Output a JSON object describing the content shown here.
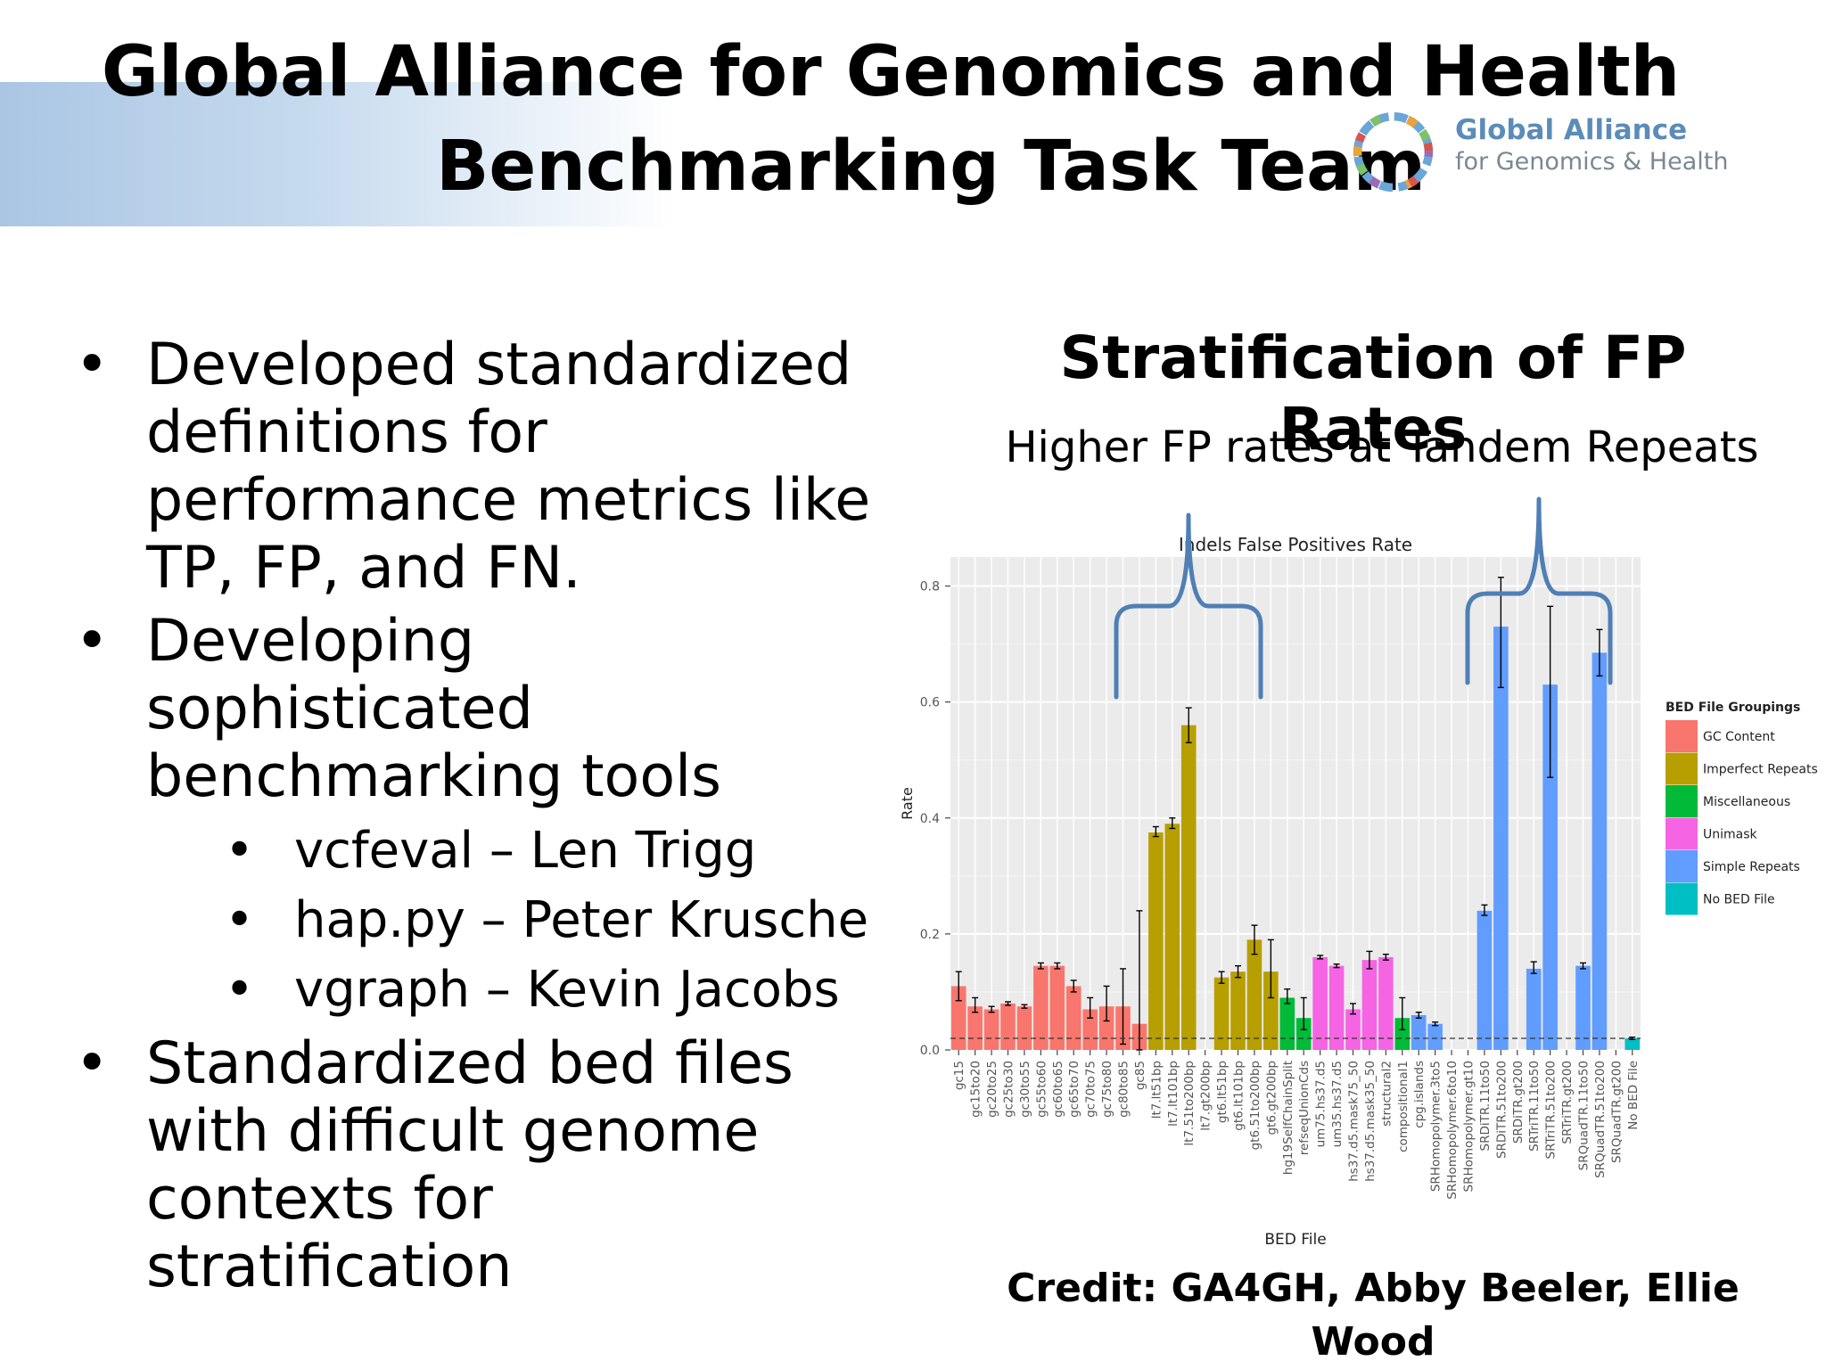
{
  "slide": {
    "title_line1": "Global Alliance for Genomics and Health",
    "title_line2": "Benchmarking Task Team",
    "logo_line1": "Global Alliance",
    "logo_line2": "for Genomics & Health",
    "bullets": [
      "Developed standardized definitions for performance metrics like TP, FP, and FN.",
      "Developing sophisticated benchmarking tools",
      "Standardized bed files with difficult genome contexts for stratification"
    ],
    "sub_bullets": [
      "vcfeval – Len Trigg",
      "hap.py – Peter Krusche",
      "vgraph – Kevin Jacobs"
    ],
    "bullet_glyph": "•",
    "chart_heading": "Stratification of FP Rates",
    "chart_subheading": "Higher FP rates at Tandem Repeats",
    "credit": "Credit: GA4GH, Abby Beeler, Ellie Wood"
  },
  "colors": {
    "GC Content": "#F8766D",
    "Imperfect Repeats": "#B79F00",
    "Miscellaneous": "#00BA38",
    "Unimask": "#F564E3",
    "Simple Repeats": "#619CFF",
    "No BED File": "#00BFC4",
    "panel": "#EBEBEB",
    "brace": "#4F7FB5"
  },
  "chart_data": {
    "type": "bar",
    "title": "Indels False Positives Rate",
    "xlabel": "BED File",
    "ylabel": "Rate",
    "ylim": [
      0,
      0.85
    ],
    "yticks": [
      0.0,
      0.2,
      0.4,
      0.6,
      0.8
    ],
    "ytick_labels": [
      "0.0",
      "0.2",
      "0.4",
      "0.6",
      "0.8"
    ],
    "grid": true,
    "reference_line": 0.02,
    "legend": {
      "title": "BED File Groupings",
      "placement": "right",
      "entries": [
        "GC Content",
        "Imperfect Repeats",
        "Miscellaneous",
        "Unimask",
        "Simple Repeats",
        "No BED File"
      ]
    },
    "categories": [
      "gc15",
      "gc15to20",
      "gc20to25",
      "gc25to30",
      "gc30to55",
      "gc55to60",
      "gc60to65",
      "gc65to70",
      "gc70to75",
      "gc75to80",
      "gc80to85",
      "gc85",
      "lt7.lt51bp",
      "lt7.lt101bp",
      "lt7.51to200bp",
      "lt7.gt200bp",
      "gt6.lt51bp",
      "gt6.lt101bp",
      "gt6.51to200bp",
      "gt6.gt200bp",
      "hg19SelfChainSplit",
      "refseqUnionCds",
      "um75.hs37.d5",
      "um35.hs37.d5",
      "hs37.d5.mask75_50",
      "hs37.d5.mask35_50",
      "structural2",
      "compositional1",
      "cpg.islands",
      "SRHomopolymer.3to5",
      "SRHomopolymer.6to10",
      "SRHomopolymer.gt10",
      "SRDiTR.11to50",
      "SRDiTR.51to200",
      "SRDiTR.gt200",
      "SRTriTR.11to50",
      "SRTriTR.51to200",
      "SRTriTR.gt200",
      "SRQuadTR.11to50",
      "SRQuadTR.51to200",
      "SRQuadTR.gt200",
      "No BED File"
    ],
    "groups": [
      "GC Content",
      "GC Content",
      "GC Content",
      "GC Content",
      "GC Content",
      "GC Content",
      "GC Content",
      "GC Content",
      "GC Content",
      "GC Content",
      "GC Content",
      "GC Content",
      "Imperfect Repeats",
      "Imperfect Repeats",
      "Imperfect Repeats",
      "Imperfect Repeats",
      "Imperfect Repeats",
      "Imperfect Repeats",
      "Imperfect Repeats",
      "Imperfect Repeats",
      "Miscellaneous",
      "Miscellaneous",
      "Unimask",
      "Unimask",
      "Unimask",
      "Unimask",
      "Unimask",
      "Miscellaneous",
      "Simple Repeats",
      "Simple Repeats",
      "Simple Repeats",
      "Simple Repeats",
      "Simple Repeats",
      "Simple Repeats",
      "Simple Repeats",
      "Simple Repeats",
      "Simple Repeats",
      "Simple Repeats",
      "Simple Repeats",
      "Simple Repeats",
      "Simple Repeats",
      "No BED File"
    ],
    "values": [
      0.11,
      0.075,
      0.07,
      0.08,
      0.075,
      0.145,
      0.145,
      0.11,
      0.07,
      0.075,
      0.075,
      0.045,
      0.375,
      0.39,
      0.56,
      0,
      0.125,
      0.135,
      0.19,
      0.135,
      0.09,
      0.055,
      0.16,
      0.145,
      0.07,
      0.155,
      0.16,
      0.055,
      0.06,
      0.045,
      0,
      0,
      0.24,
      0.73,
      0,
      0.14,
      0.63,
      0,
      0.145,
      0.685,
      0,
      0.02
    ],
    "error_low": [
      0.085,
      0.065,
      0.065,
      0.077,
      0.072,
      0.14,
      0.14,
      0.1,
      0.055,
      0.05,
      0.01,
      0.0,
      0.368,
      0.382,
      0.53,
      0,
      0.115,
      0.125,
      0.165,
      0.09,
      0.08,
      0.035,
      0.157,
      0.142,
      0.062,
      0.14,
      0.155,
      0.035,
      0.055,
      0.042,
      0,
      0,
      0.232,
      0.625,
      0,
      0.132,
      0.47,
      0,
      0.14,
      0.645,
      0,
      0.018
    ],
    "error_high": [
      0.135,
      0.09,
      0.075,
      0.083,
      0.078,
      0.15,
      0.15,
      0.12,
      0.09,
      0.11,
      0.14,
      0.24,
      0.385,
      0.4,
      0.59,
      0,
      0.135,
      0.145,
      0.215,
      0.19,
      0.105,
      0.09,
      0.163,
      0.148,
      0.08,
      0.17,
      0.165,
      0.09,
      0.065,
      0.048,
      0,
      0,
      0.25,
      0.815,
      0,
      0.152,
      0.765,
      0,
      0.15,
      0.725,
      0,
      0.022
    ],
    "annotations": [
      "Imperfect Repeats brace",
      "Simple Repeats brace"
    ]
  }
}
